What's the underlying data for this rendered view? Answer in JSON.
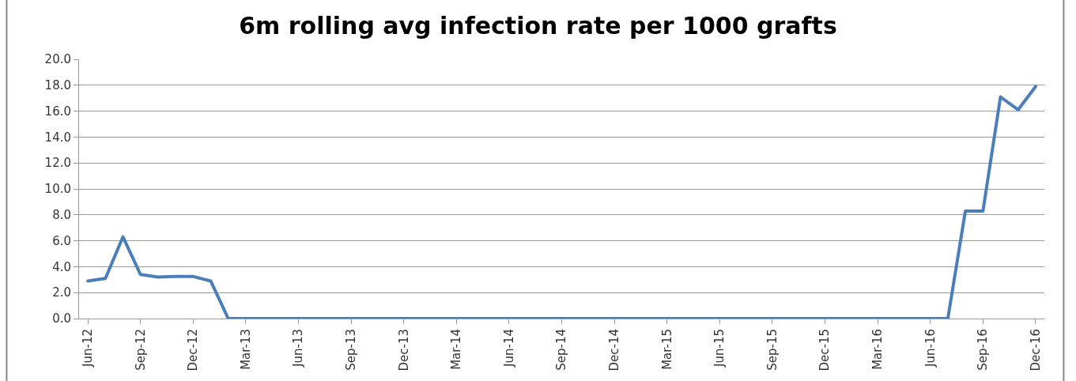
{
  "chart_data": {
    "type": "line",
    "title": "6m rolling avg infection rate per 1000 grafts",
    "categories": [
      "Jun-12",
      null,
      null,
      "Sep-12",
      null,
      null,
      "Dec-12",
      null,
      null,
      "Mar-13",
      null,
      null,
      "Jun-13",
      null,
      null,
      "Sep-13",
      null,
      null,
      "Dec-13",
      null,
      null,
      "Mar-14",
      null,
      null,
      "Jun-14",
      null,
      null,
      "Sep-14",
      null,
      null,
      "Dec-14",
      null,
      null,
      "Mar-15",
      null,
      null,
      "Jun-15",
      null,
      null,
      "Sep-15",
      null,
      null,
      "Dec-15",
      null,
      null,
      "Mar-16",
      null,
      null,
      "Jun-16",
      null,
      null,
      "Sep-16",
      null,
      null,
      "Dec-16"
    ],
    "series": [
      {
        "color": "#4a7ebb",
        "values": [
          2.9,
          3.1,
          6.3,
          3.4,
          3.2,
          3.25,
          3.25,
          2.9,
          0,
          0,
          0,
          0,
          0,
          0,
          0,
          0,
          0,
          0,
          0,
          0,
          0,
          0,
          0,
          0,
          0,
          0,
          0,
          0,
          0,
          0,
          0,
          0,
          0,
          0,
          0,
          0,
          0,
          0,
          0,
          0,
          0,
          0,
          0,
          0,
          0,
          0,
          0,
          0,
          0,
          0,
          8.3,
          8.3,
          17.1,
          16.1,
          17.9
        ]
      }
    ],
    "ylim": [
      0,
      20
    ],
    "yticks": [
      {
        "value": 0,
        "label": "0.0"
      },
      {
        "value": 2,
        "label": "2.0"
      },
      {
        "value": 4,
        "label": "4.0"
      },
      {
        "value": 6,
        "label": "6.0"
      },
      {
        "value": 8,
        "label": "8.0"
      },
      {
        "value": 10,
        "label": "10.0"
      },
      {
        "value": 12,
        "label": "12.0"
      },
      {
        "value": 14,
        "label": "14.0"
      },
      {
        "value": 16,
        "label": "16.0"
      },
      {
        "value": 18,
        "label": "18.0"
      },
      {
        "value": 20,
        "label": "20.0"
      }
    ],
    "grid": "y",
    "legend": false,
    "marker": "none",
    "line_style": "solid"
  }
}
